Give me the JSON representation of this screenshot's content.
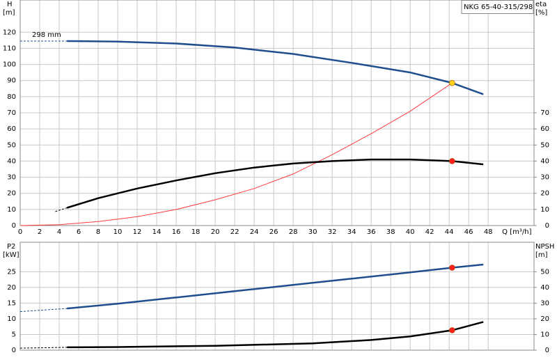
{
  "chart_data": [
    {
      "type": "line",
      "title": "NKG 65-40-315/298",
      "annotation": "298 mm",
      "ylabel": "H",
      "yunit": "[m]",
      "y2label": "eta",
      "y2unit": "[%]",
      "xlabel": "Q [m³/h]",
      "xlim": [
        0,
        52.7
      ],
      "xticks": [
        0,
        2,
        4,
        6,
        8,
        10,
        12,
        14,
        16,
        18,
        20,
        22,
        24,
        26,
        28,
        30,
        32,
        34,
        36,
        38,
        40,
        42,
        44,
        46,
        48
      ],
      "ylim": [
        0,
        140
      ],
      "yticks": [
        0,
        10,
        20,
        30,
        40,
        50,
        60,
        70,
        80,
        90,
        100,
        110,
        120
      ],
      "y2lim": [
        0,
        140
      ],
      "y2ticks": [
        0,
        10,
        20,
        30,
        40,
        50,
        60,
        70
      ],
      "grid": true,
      "series": [
        {
          "name": "H",
          "color": "#1f4e8c",
          "dashed": true,
          "x": [
            0,
            4.8
          ],
          "values": [
            114.5,
            114.5
          ]
        },
        {
          "name": "H",
          "color": "#1f4e8c",
          "x": [
            4.8,
            10,
            16,
            22,
            28,
            34,
            38,
            40,
            44.3,
            47.5
          ],
          "values": [
            114.5,
            114.2,
            113,
            110.5,
            106.5,
            101,
            97,
            95,
            88.5,
            81.5
          ]
        },
        {
          "color": "#ff3b3b",
          "thin": true,
          "x": [
            0,
            4,
            8,
            12,
            16,
            20,
            24,
            28,
            32,
            36,
            40,
            44.3
          ],
          "values": [
            0,
            0.5,
            2.5,
            5.5,
            10,
            16,
            23,
            32,
            44,
            57,
            71,
            88.5
          ]
        },
        {
          "name": "eta",
          "color": "#000000",
          "axis": "y2",
          "dashed": true,
          "x": [
            3.6,
            4.8
          ],
          "values": [
            8.7,
            11
          ]
        },
        {
          "name": "eta",
          "color": "#000000",
          "axis": "y2",
          "x": [
            4.8,
            8,
            12,
            16,
            20,
            24,
            28,
            32,
            36,
            40,
            44.3,
            47.5
          ],
          "values": [
            11,
            17,
            23,
            28,
            32.5,
            36,
            38.5,
            40,
            41,
            41,
            40,
            38
          ]
        }
      ],
      "markers": [
        {
          "x": 44.3,
          "y": 88.5,
          "color": "#ffd21f"
        },
        {
          "x": 44.3,
          "y": 40,
          "color": "#ff2020",
          "axis": "y2"
        }
      ]
    },
    {
      "type": "line",
      "ylabel": "P2",
      "yunit": "[kW]",
      "y2label": "NPSH",
      "y2unit": "[m]",
      "xlim": [
        0,
        52.7
      ],
      "xticks": [
        0,
        2,
        4,
        6,
        8,
        10,
        12,
        14,
        16,
        18,
        20,
        22,
        24,
        26,
        28,
        30,
        32,
        34,
        36,
        38,
        40,
        42,
        44,
        46,
        48
      ],
      "xtick_labels": false,
      "ylim": [
        0,
        34.4
      ],
      "yticks": [
        0,
        5,
        10,
        15,
        20,
        25
      ],
      "y2lim": [
        0,
        68.8
      ],
      "y2ticks": [
        0,
        10,
        20,
        30,
        40,
        50
      ],
      "grid": true,
      "series": [
        {
          "name": "P2",
          "color": "#1f4e8c",
          "dashed": true,
          "x": [
            0,
            4.8
          ],
          "values": [
            12.3,
            13.3
          ]
        },
        {
          "name": "P2",
          "color": "#1f4e8c",
          "x": [
            4.8,
            10,
            16,
            22,
            28,
            34,
            40,
            44.3,
            47.5
          ],
          "values": [
            13.3,
            14.8,
            16.8,
            18.8,
            20.8,
            22.8,
            24.8,
            26.3,
            27.3
          ]
        },
        {
          "name": "NPSH",
          "color": "#000000",
          "axis": "y2",
          "dashed": true,
          "x": [
            0,
            4.8
          ],
          "values": [
            1.3,
            1.8
          ]
        },
        {
          "name": "NPSH",
          "color": "#000000",
          "axis": "y2",
          "x": [
            4.8,
            10,
            20,
            30,
            36,
            40,
            44.3,
            47.5
          ],
          "values": [
            1.8,
            2,
            2.8,
            4.3,
            6.5,
            8.8,
            12.7,
            18
          ]
        }
      ],
      "markers": [
        {
          "x": 44.3,
          "y": 26.3,
          "color": "#ff2020"
        },
        {
          "x": 44.3,
          "y": 12.7,
          "color": "#ff2020",
          "axis": "y2"
        }
      ]
    }
  ]
}
